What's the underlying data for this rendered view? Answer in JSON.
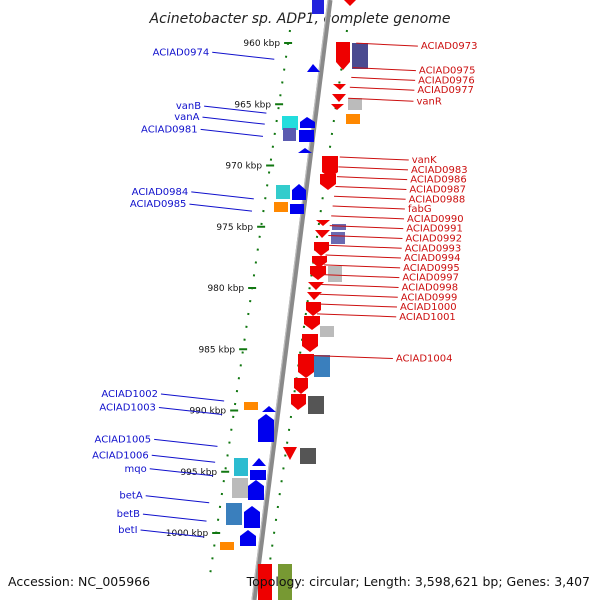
{
  "title": "Acinetobacter sp. ADP1, complete genome",
  "footer": {
    "accession": "Accession: NC_005966",
    "info": "Topology: circular; Length: 3,598,621 bp; Genes: 3,407"
  },
  "colors": {
    "forward_strand": "#ee0000",
    "reverse_strand": "#0000ee",
    "backbone": "#888888",
    "tick": "#117711",
    "left_label": "#1010cc",
    "right_label": "#cc1010"
  },
  "ticks": [
    {
      "kbp": 960,
      "label": "960 kbp"
    },
    {
      "kbp": 965,
      "label": "965 kbp"
    },
    {
      "kbp": 970,
      "label": "970 kbp"
    },
    {
      "kbp": 975,
      "label": "975 kbp"
    },
    {
      "kbp": 980,
      "label": "980 kbp"
    },
    {
      "kbp": 985,
      "label": "985 kbp"
    },
    {
      "kbp": 990,
      "label": "990 kbp"
    },
    {
      "kbp": 995,
      "label": "995 kbp"
    },
    {
      "kbp": 1000,
      "label": "1000 kbp"
    }
  ],
  "left_genes": [
    {
      "label": "ACIAD0974",
      "kbp": 961.0
    },
    {
      "label": "vanB",
      "kbp": 965.4
    },
    {
      "label": "vanA",
      "kbp": 966.3
    },
    {
      "label": "ACIAD0981",
      "kbp": 967.3
    },
    {
      "label": "ACIAD0984",
      "kbp": 972.4
    },
    {
      "label": "ACIAD0985",
      "kbp": 973.4
    },
    {
      "label": "ACIAD1002",
      "kbp": 988.9
    },
    {
      "label": "ACIAD1003",
      "kbp": 990.0
    },
    {
      "label": "ACIAD1005",
      "kbp": 992.6
    },
    {
      "label": "ACIAD1006",
      "kbp": 993.9
    },
    {
      "label": "mqo",
      "kbp": 995.0
    },
    {
      "label": "betA",
      "kbp": 997.2
    },
    {
      "label": "betB",
      "kbp": 998.7
    },
    {
      "label": "betI",
      "kbp": 1000.0
    }
  ],
  "right_genes": [
    {
      "label": "ACIAD0973",
      "kbp": 960.5
    },
    {
      "label": "ACIAD0975",
      "kbp": 962.5
    },
    {
      "label": "ACIAD0976",
      "kbp": 963.3
    },
    {
      "label": "ACIAD0977",
      "kbp": 964.1
    },
    {
      "label": "vanR",
      "kbp": 965.0
    },
    {
      "label": "vanK",
      "kbp": 969.8
    },
    {
      "label": "ACIAD0983",
      "kbp": 970.6
    },
    {
      "label": "ACIAD0986",
      "kbp": 971.4
    },
    {
      "label": "ACIAD0987",
      "kbp": 972.2
    },
    {
      "label": "ACIAD0988",
      "kbp": 973.0
    },
    {
      "label": "fabG",
      "kbp": 973.8
    },
    {
      "label": "ACIAD0990",
      "kbp": 974.6
    },
    {
      "label": "ACIAD0991",
      "kbp": 975.4
    },
    {
      "label": "ACIAD0992",
      "kbp": 976.2
    },
    {
      "label": "ACIAD0993",
      "kbp": 977.0
    },
    {
      "label": "ACIAD0994",
      "kbp": 977.8
    },
    {
      "label": "ACIAD0995",
      "kbp": 978.6
    },
    {
      "label": "ACIAD0997",
      "kbp": 979.4
    },
    {
      "label": "ACIAD0998",
      "kbp": 980.2
    },
    {
      "label": "ACIAD0999",
      "kbp": 981.0
    },
    {
      "label": "ACIAD1000",
      "kbp": 981.8
    },
    {
      "label": "ACIAD1001",
      "kbp": 982.6
    },
    {
      "label": "ACIAD1004",
      "kbp": 986.0
    }
  ]
}
